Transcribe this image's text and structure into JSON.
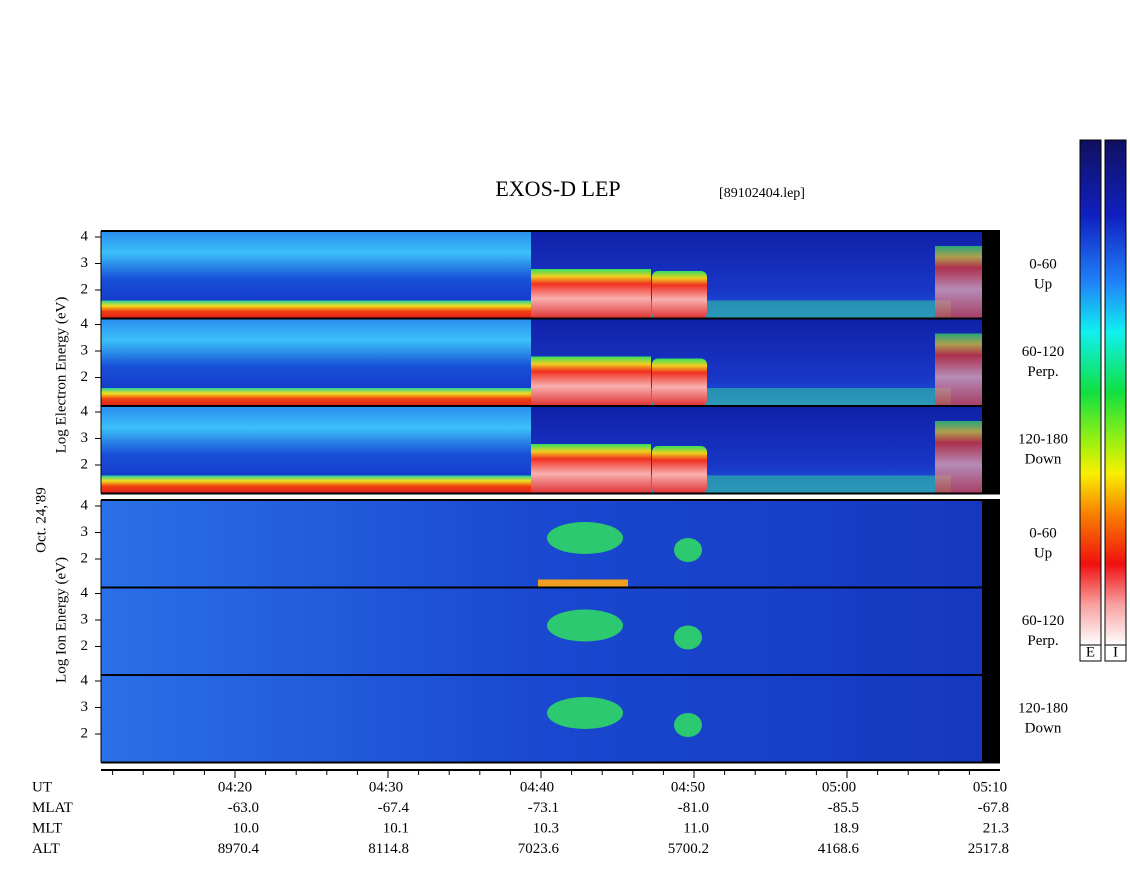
{
  "title": "EXOS-D LEP",
  "file": "[89102404.lep]",
  "date": "Oct. 24,'89",
  "electron_axis_label": "Log Electron Energy (eV)",
  "ion_axis_label": "Log Ion Energy (eV)",
  "panels": [
    {
      "range": "0-60",
      "direction": "Up"
    },
    {
      "range": "60-120",
      "direction": "Perp."
    },
    {
      "range": "120-180",
      "direction": "Down"
    },
    {
      "range": "0-60",
      "direction": "Up"
    },
    {
      "range": "60-120",
      "direction": "Perp."
    },
    {
      "range": "120-180",
      "direction": "Down"
    }
  ],
  "energy_tick_labels": [
    "4",
    "3",
    "2"
  ],
  "time_axis": [
    {
      "name": "UT",
      "values": [
        "04:20",
        "04:30",
        "04:40",
        "04:50",
        "05:00",
        "05:10"
      ]
    },
    {
      "name": "MLAT",
      "values": [
        "-63.0",
        "-67.4",
        "-73.1",
        "-81.0",
        "-85.5",
        "-67.8"
      ]
    },
    {
      "name": "MLT",
      "values": [
        "10.0",
        "10.1",
        "10.3",
        "11.0",
        "18.9",
        "21.3"
      ]
    },
    {
      "name": "ALT",
      "values": [
        "8970.4",
        "8114.8",
        "7023.6",
        "5700.2",
        "4168.6",
        "2517.8"
      ]
    }
  ],
  "colorbar_labels": [
    "E",
    "I"
  ]
}
